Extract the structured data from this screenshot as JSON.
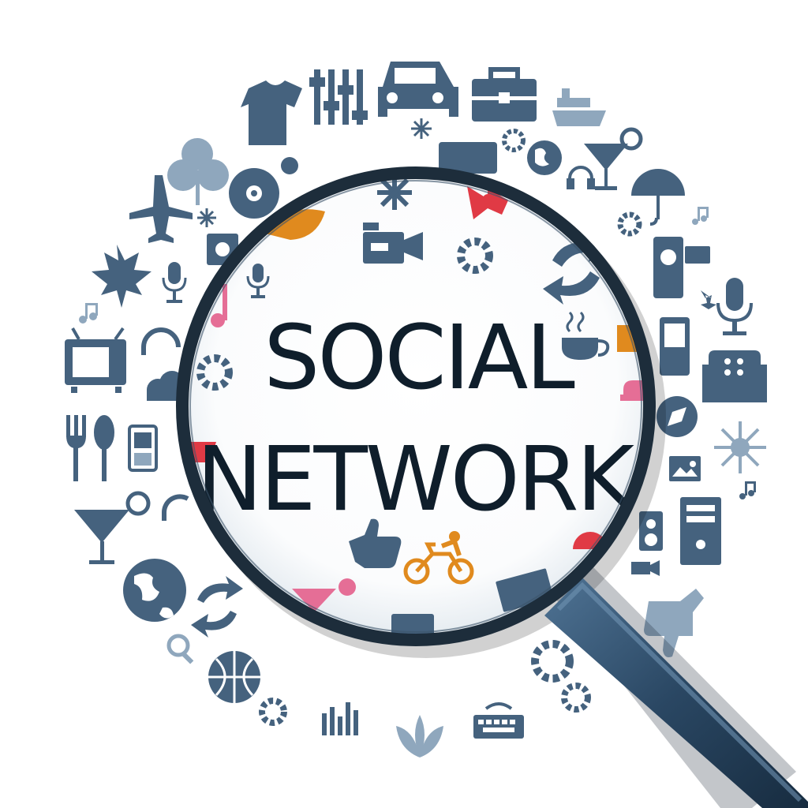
{
  "headline": {
    "line1": "SOCIAL",
    "line2": "NETWORK"
  },
  "colors": {
    "icon": "#45627e",
    "icon_light": "#8fa7bd",
    "orange": "#e08a1e",
    "red": "#e03a45",
    "pink": "#e56e96",
    "rim": "#1d2d3b",
    "handle": "#2c4a66",
    "text": "#0f1e2b"
  },
  "icons": [
    "equalizer-icon",
    "car-icon",
    "briefcase-icon",
    "ship-icon",
    "tshirt-icon",
    "snowflake-icon",
    "leaf-icon",
    "headphones-icon",
    "cocktail-icon",
    "umbrella-icon",
    "airplane-icon",
    "cd-icon",
    "basketball-icon",
    "gear-icon",
    "music-note-icon",
    "camcorder-icon",
    "microphone-icon",
    "tv-icon",
    "coffee-cup-icon",
    "mobile-phone-icon",
    "armchair-icon",
    "fork-icon",
    "spoon-icon",
    "compass-icon",
    "picture-icon",
    "pc-tower-icon",
    "globe-icon",
    "refresh-icon",
    "thumbs-up-icon",
    "thumbs-down-icon",
    "bicycle-icon",
    "film-strip-icon",
    "keyboard-icon",
    "cloud-icon",
    "magnifier-icon"
  ]
}
